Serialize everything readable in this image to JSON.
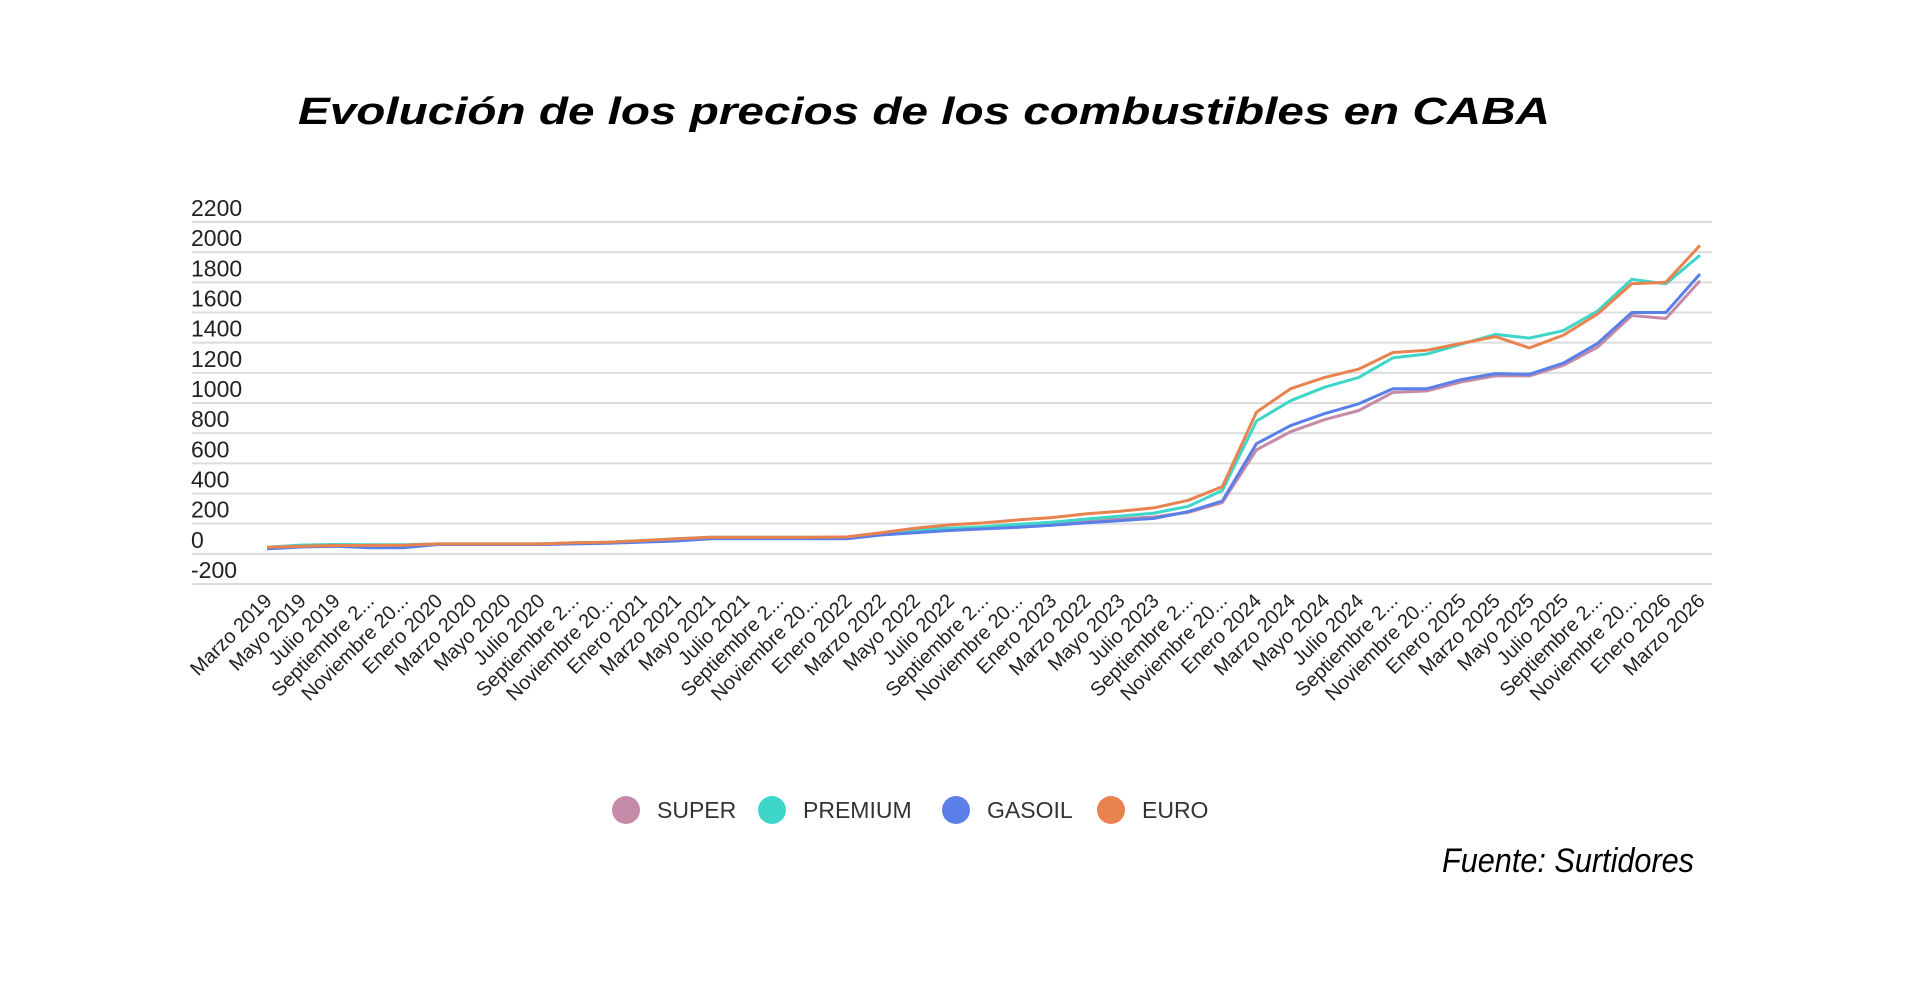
{
  "chart_data": {
    "type": "line",
    "title": "Evolución de los precios de los combustibles en CABA",
    "source": "Fuente: Surtidores",
    "xlabel": "",
    "ylabel": "",
    "ylim": [
      -200,
      2200
    ],
    "yticks": [
      2200,
      2000,
      1800,
      1600,
      1400,
      1200,
      1000,
      800,
      600,
      400,
      200,
      0,
      -200
    ],
    "grid": true,
    "legend_position": "bottom",
    "categories": [
      "Marzo 2019",
      "Mayo 2019",
      "Julio 2019",
      "Septiembre 2...",
      "Noviembre 20...",
      "Enero 2020",
      "Marzo 2020",
      "Mayo 2020",
      "Julio 2020",
      "Septiembre 2...",
      "Noviembre 20...",
      "Enero 2021",
      "Marzo 2021",
      "Mayo 2021",
      "Julio 2021",
      "Septiembre 2...",
      "Noviembre 20...",
      "Enero 2022",
      "Marzo 2022",
      "Mayo 2022",
      "Julio 2022",
      "Septiembre 2...",
      "Noviembre 20...",
      "Enero 2023",
      "Marzo 2022",
      "Mayo 2023",
      "Julio 2023",
      "Septiembre 2...",
      "Noviembre 20...",
      "Enero 2024",
      "Marzo 2024",
      "Mayo 2024",
      "Julio 2024",
      "Septiembre 2...",
      "Noviembre 20...",
      "Enero 2025",
      "Marzo 2025",
      "Mayo 2025",
      "Julio 2025",
      "Septiembre 2...",
      "Noviembre 20...",
      "Enero 2026",
      "Marzo 2026"
    ],
    "series": [
      {
        "name": "SUPER",
        "color": "#c48aa8",
        "values": [
          40,
          47,
          52,
          52,
          55,
          62,
          62,
          62,
          62,
          68,
          72,
          82,
          95,
          105,
          105,
          105,
          105,
          105,
          130,
          150,
          165,
          175,
          185,
          200,
          215,
          230,
          245,
          275,
          340,
          690,
          810,
          890,
          950,
          1070,
          1080,
          1140,
          1180,
          1180,
          1250,
          1370,
          1580,
          1560,
          1810
        ]
      },
      {
        "name": "PREMIUM",
        "color": "#3dd6c8",
        "values": [
          44,
          58,
          62,
          60,
          60,
          66,
          66,
          66,
          66,
          73,
          77,
          88,
          100,
          110,
          110,
          110,
          110,
          110,
          137,
          160,
          170,
          180,
          195,
          210,
          230,
          250,
          270,
          315,
          420,
          880,
          1015,
          1105,
          1170,
          1300,
          1325,
          1390,
          1455,
          1430,
          1480,
          1610,
          1820,
          1790,
          1980
        ]
      },
      {
        "name": "GASOIL",
        "color": "#5b7fe8",
        "values": [
          33,
          45,
          50,
          40,
          40,
          62,
          62,
          62,
          62,
          66,
          70,
          78,
          85,
          100,
          100,
          100,
          100,
          100,
          125,
          140,
          155,
          165,
          175,
          190,
          205,
          220,
          235,
          280,
          350,
          730,
          850,
          930,
          995,
          1095,
          1095,
          1155,
          1195,
          1190,
          1265,
          1395,
          1600,
          1600,
          1855
        ]
      },
      {
        "name": "EURO",
        "color": "#e8834f",
        "values": [
          44,
          50,
          55,
          55,
          57,
          66,
          66,
          66,
          66,
          73,
          77,
          88,
          100,
          110,
          110,
          110,
          110,
          112,
          140,
          170,
          192,
          205,
          225,
          240,
          265,
          282,
          305,
          355,
          445,
          940,
          1095,
          1170,
          1225,
          1335,
          1350,
          1395,
          1440,
          1365,
          1450,
          1590,
          1790,
          1800,
          2045
        ]
      }
    ]
  }
}
